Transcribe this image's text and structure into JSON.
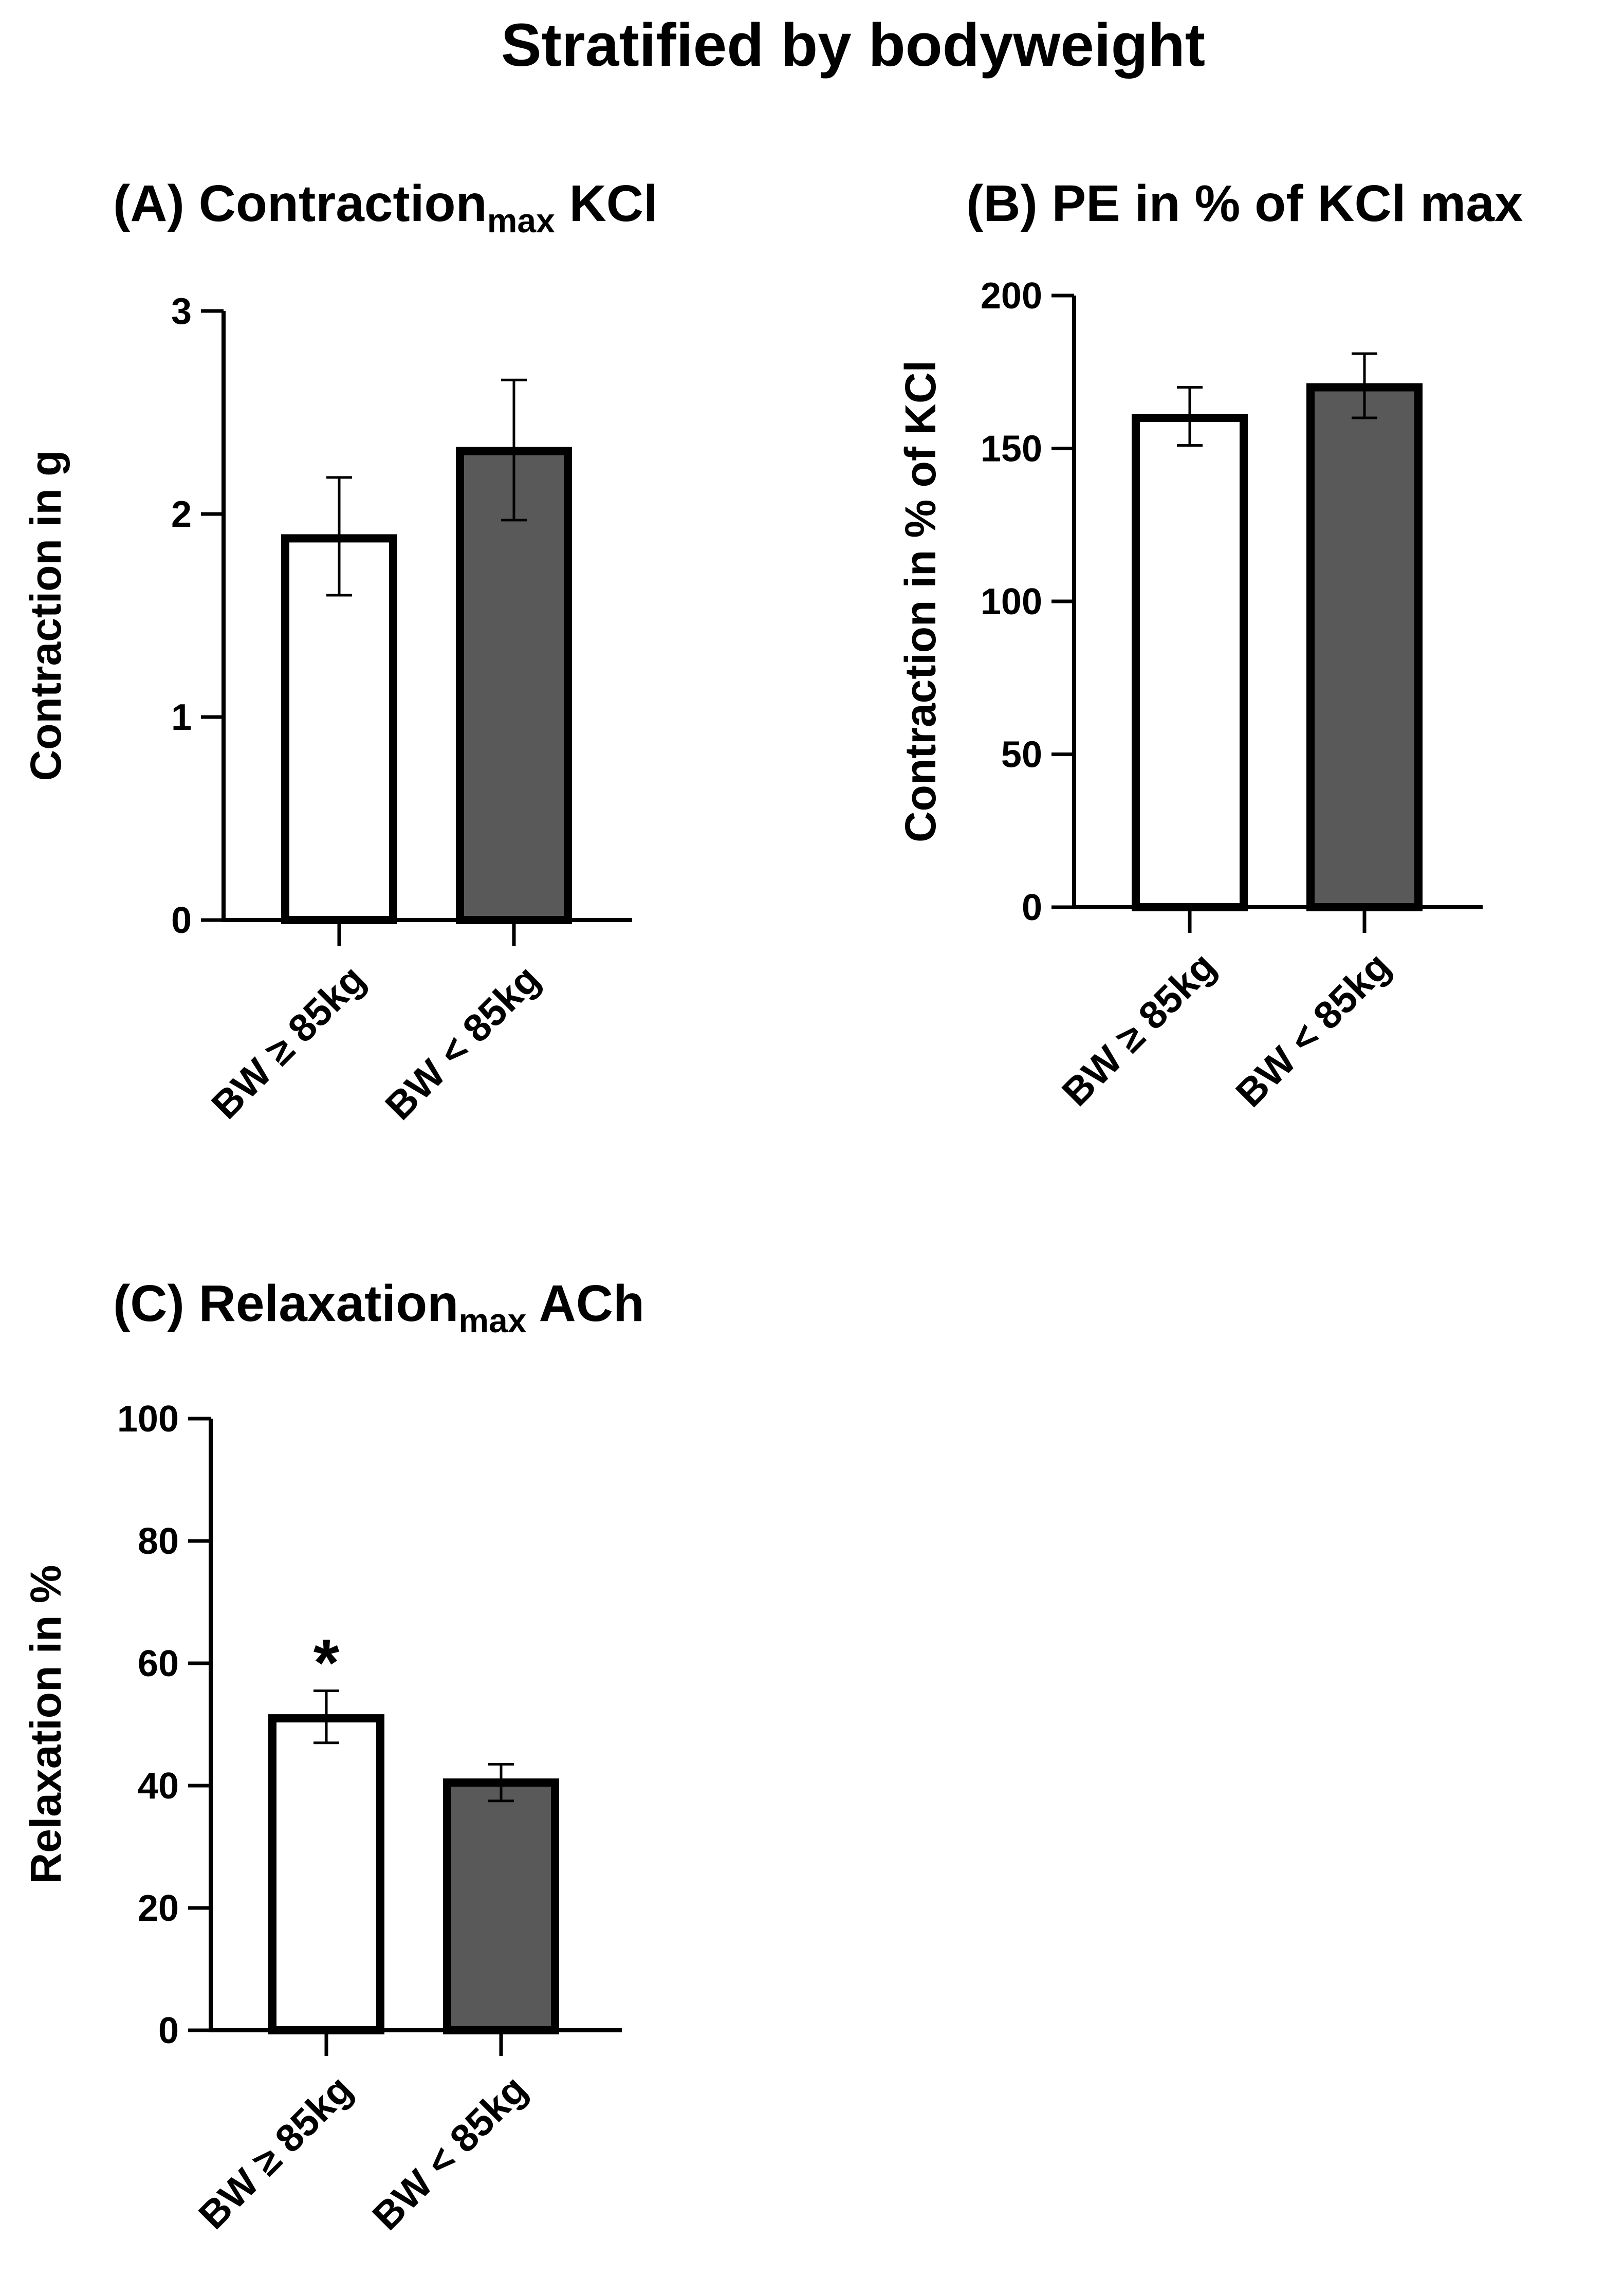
{
  "figure": {
    "title": "Stratified by bodyweight"
  },
  "colors": {
    "bar_light": "#ffffff",
    "bar_dark": "#595959",
    "stroke": "#000000"
  },
  "chart_data": [
    {
      "panel": "A",
      "type": "bar",
      "title": {
        "prefix": "(A) Contraction",
        "subscript": "max",
        "suffix": " KCl"
      },
      "xlabel": "",
      "ylabel": "Contraction in g",
      "categories": [
        "BW ≥ 85kg",
        "BW < 85kg"
      ],
      "values": [
        1.88,
        2.31
      ],
      "errors": [
        [
          1.6,
          2.18
        ],
        [
          1.97,
          2.66
        ]
      ],
      "fills": [
        "bar_light",
        "bar_dark"
      ],
      "ylim": [
        0,
        3
      ],
      "yticks": [
        0,
        1,
        2,
        3
      ],
      "ytick_labels": [
        "0",
        "1",
        "2",
        "3"
      ],
      "annotations": [
        "",
        ""
      ]
    },
    {
      "panel": "B",
      "type": "bar",
      "title": {
        "prefix": "(B) PE in % of KCl max",
        "subscript": "",
        "suffix": ""
      },
      "xlabel": "",
      "ylabel": "Contraction in % of KCl",
      "categories": [
        "BW ≥ 85kg",
        "BW < 85kg"
      ],
      "values": [
        160,
        170
      ],
      "errors": [
        [
          151,
          170
        ],
        [
          160,
          181
        ]
      ],
      "fills": [
        "bar_light",
        "bar_dark"
      ],
      "ylim": [
        0,
        200
      ],
      "yticks": [
        0,
        50,
        100,
        150,
        200
      ],
      "ytick_labels": [
        "0",
        "50",
        "100",
        "150",
        "200"
      ],
      "annotations": [
        "",
        ""
      ]
    },
    {
      "panel": "C",
      "type": "bar",
      "title": {
        "prefix": "(C) Relaxation",
        "subscript": "max",
        "suffix": " ACh"
      },
      "xlabel": "",
      "ylabel": "Relaxation in %",
      "categories": [
        "BW ≥ 85kg",
        "BW < 85kg"
      ],
      "values": [
        51,
        40.5
      ],
      "errors": [
        [
          47,
          55.5
        ],
        [
          37.5,
          43.5
        ]
      ],
      "fills": [
        "bar_light",
        "bar_dark"
      ],
      "ylim": [
        0,
        100
      ],
      "yticks": [
        0,
        20,
        40,
        60,
        80,
        100
      ],
      "ytick_labels": [
        "0",
        "20",
        "40",
        "60",
        "80",
        "100"
      ],
      "annotations": [
        "*",
        ""
      ]
    }
  ]
}
